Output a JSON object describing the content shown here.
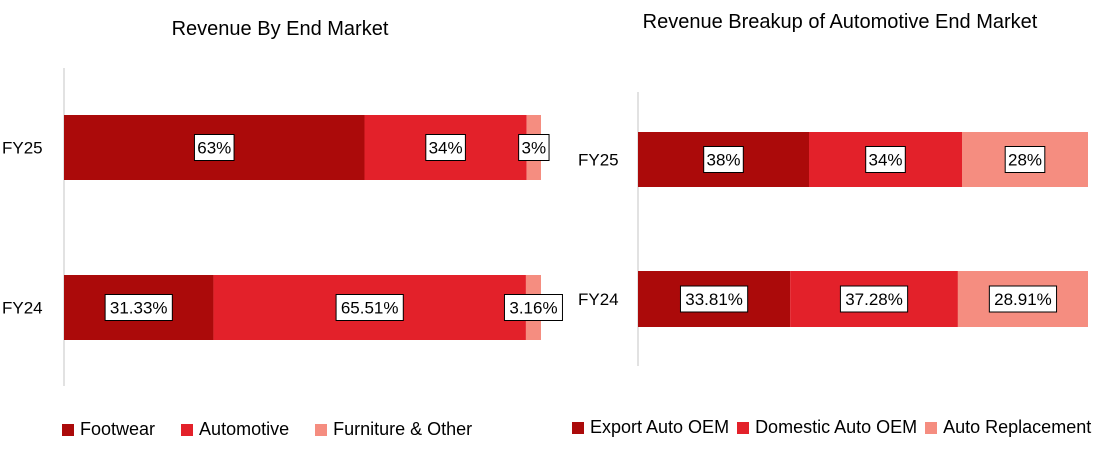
{
  "chart_data": [
    {
      "type": "bar",
      "orientation": "horizontal",
      "stacked": true,
      "title": "Revenue By End Market",
      "categories": [
        "FY25",
        "FY24"
      ],
      "series": [
        {
          "name": "Footwear",
          "color": "#ab0a0a",
          "values": [
            63,
            31.33
          ],
          "labels": [
            "63%",
            "31.33%"
          ]
        },
        {
          "name": "Automotive",
          "color": "#e3212a",
          "values": [
            34,
            65.51
          ],
          "labels": [
            "34%",
            "65.51%"
          ]
        },
        {
          "name": "Furniture & Other",
          "color": "#f58d80",
          "values": [
            3,
            3.16
          ],
          "labels": [
            "3%",
            "3.16%"
          ]
        }
      ],
      "xlim": [
        0,
        100
      ],
      "legend": "bottom",
      "grid": false
    },
    {
      "type": "bar",
      "orientation": "horizontal",
      "stacked": true,
      "title": "Revenue Breakup of Automotive End Market",
      "categories": [
        "FY25",
        "FY24"
      ],
      "series": [
        {
          "name": "Export Auto OEM",
          "color": "#ab0a0a",
          "values": [
            38,
            33.81
          ],
          "labels": [
            "38%",
            "33.81%"
          ]
        },
        {
          "name": "Domestic Auto OEM",
          "color": "#e3212a",
          "values": [
            34,
            37.28
          ],
          "labels": [
            "34%",
            "37.28%"
          ]
        },
        {
          "name": "Auto Replacement",
          "color": "#f58d80",
          "values": [
            28,
            28.91
          ],
          "labels": [
            "28%",
            "28.91%"
          ]
        }
      ],
      "xlim": [
        0,
        100
      ],
      "legend": "bottom",
      "grid": false
    }
  ]
}
